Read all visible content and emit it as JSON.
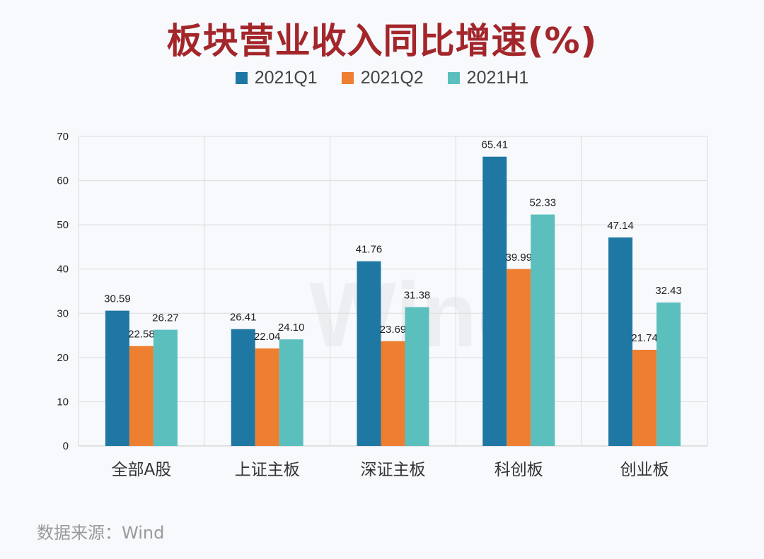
{
  "title": "板块营业收入同比增速(%)",
  "source": "数据来源：Wind",
  "watermark": "Wind",
  "colors": {
    "title": "#a3262b",
    "grid": "#dcdcdc",
    "axis_text": "#222222"
  },
  "chart_data": {
    "type": "bar",
    "title": "板块营业收入同比增速(%)",
    "categories": [
      "全部A股",
      "上证主板",
      "深证主板",
      "科创板",
      "创业板"
    ],
    "series": [
      {
        "name": "2021Q1",
        "color": "#1f77a3",
        "values": [
          30.59,
          26.41,
          41.76,
          65.41,
          47.14
        ]
      },
      {
        "name": "2021Q2",
        "color": "#ee7f31",
        "values": [
          22.58,
          22.04,
          23.69,
          39.99,
          21.74
        ]
      },
      {
        "name": "2021H1",
        "color": "#5bbfbe",
        "values": [
          26.27,
          24.1,
          31.38,
          52.33,
          32.43
        ]
      }
    ],
    "ylim": [
      0,
      70
    ],
    "yticks": [
      0,
      10,
      20,
      30,
      40,
      50,
      60,
      70
    ],
    "label_decimals": 2,
    "grid": true,
    "legend_position": "top-center",
    "xlabel": "",
    "ylabel": ""
  }
}
